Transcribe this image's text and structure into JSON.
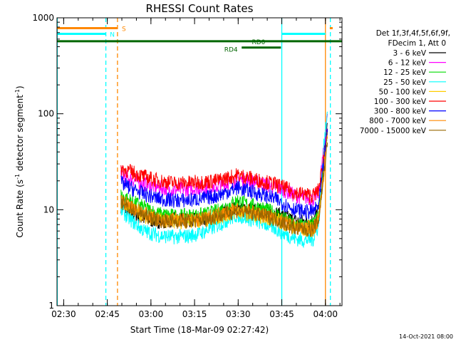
{
  "chart_data": {
    "type": "line",
    "title": "RHESSI Count Rates",
    "xlabel": "Start Time (18-Mar-09 02:27:42)",
    "ylabel_main": "Count Rate (s",
    "ylabel_sup": "-1",
    "ylabel_mid": " detector segment",
    "ylabel_sup2": "-1",
    "ylabel_end": ")",
    "x_unit": "minutes after 02:27:42",
    "xlim": [
      0,
      98
    ],
    "ylim": [
      1,
      1000
    ],
    "y_scale": "log",
    "x_ticks": [
      {
        "label": "02:30",
        "value": 2.3
      },
      {
        "label": "02:45",
        "value": 17.3
      },
      {
        "label": "03:00",
        "value": 32.3
      },
      {
        "label": "03:15",
        "value": 47.3
      },
      {
        "label": "03:30",
        "value": 62.3
      },
      {
        "label": "03:45",
        "value": 77.3
      },
      {
        "label": "04:00",
        "value": 92.3
      }
    ],
    "y_ticks": [
      {
        "label": "1",
        "value": 1
      },
      {
        "label": "10",
        "value": 10
      },
      {
        "label": "100",
        "value": 100
      },
      {
        "label": "1000",
        "value": 1000
      }
    ],
    "legend": {
      "header1": "Det 1f,3f,4f,5f,6f,9f,",
      "header2": "FDecim 1, Att 0",
      "placement": "right"
    },
    "series": [
      {
        "name": "3 - 6 keV",
        "color": "#000000",
        "points": [
          [
            22,
            11
          ],
          [
            25,
            9.5
          ],
          [
            30,
            8
          ],
          [
            35,
            7.6
          ],
          [
            40,
            7.8
          ],
          [
            45,
            7.8
          ],
          [
            50,
            8
          ],
          [
            55,
            8.8
          ],
          [
            60,
            10
          ],
          [
            62,
            10.8
          ],
          [
            65,
            10.2
          ],
          [
            70,
            9.6
          ],
          [
            75,
            9.2
          ],
          [
            78,
            8.5
          ],
          [
            82,
            7.6
          ],
          [
            85,
            7.5
          ],
          [
            88,
            7.6
          ],
          [
            90,
            10
          ],
          [
            92,
            40
          ],
          [
            93,
            80
          ]
        ]
      },
      {
        "name": "6 - 12 keV",
        "color": "#ff00ff",
        "points": [
          [
            22,
            24
          ],
          [
            25,
            21
          ],
          [
            30,
            18.5
          ],
          [
            35,
            17
          ],
          [
            40,
            16
          ],
          [
            45,
            16.5
          ],
          [
            50,
            17
          ],
          [
            55,
            17.5
          ],
          [
            60,
            19.5
          ],
          [
            62,
            21
          ],
          [
            65,
            20
          ],
          [
            70,
            19
          ],
          [
            75,
            17
          ],
          [
            78,
            16
          ],
          [
            82,
            14
          ],
          [
            85,
            13.5
          ],
          [
            88,
            13
          ],
          [
            90,
            15
          ],
          [
            92,
            50
          ],
          [
            93,
            100
          ]
        ]
      },
      {
        "name": "12 - 25 keV",
        "color": "#00dd00",
        "points": [
          [
            22,
            14
          ],
          [
            25,
            12.5
          ],
          [
            30,
            10.5
          ],
          [
            35,
            9
          ],
          [
            40,
            8.6
          ],
          [
            45,
            8.6
          ],
          [
            50,
            8.8
          ],
          [
            55,
            9.6
          ],
          [
            60,
            11.5
          ],
          [
            62,
            12.5
          ],
          [
            65,
            11.5
          ],
          [
            70,
            10.5
          ],
          [
            75,
            9.2
          ],
          [
            78,
            8
          ],
          [
            82,
            7
          ],
          [
            85,
            6.8
          ],
          [
            88,
            6.8
          ],
          [
            90,
            9
          ],
          [
            92,
            35
          ],
          [
            93,
            70
          ]
        ]
      },
      {
        "name": "25 - 50 keV",
        "color": "#00ffff",
        "points": [
          [
            22,
            10
          ],
          [
            25,
            8
          ],
          [
            30,
            6
          ],
          [
            35,
            5.4
          ],
          [
            40,
            5.2
          ],
          [
            45,
            5.3
          ],
          [
            50,
            5.8
          ],
          [
            55,
            6.8
          ],
          [
            60,
            8.2
          ],
          [
            62,
            8.8
          ],
          [
            65,
            8.2
          ],
          [
            70,
            7.4
          ],
          [
            75,
            6.4
          ],
          [
            78,
            5.6
          ],
          [
            82,
            5
          ],
          [
            85,
            4.8
          ],
          [
            88,
            4.9
          ],
          [
            90,
            7
          ],
          [
            92,
            60
          ],
          [
            93,
            105
          ]
        ]
      },
      {
        "name": "50 - 100 keV",
        "color": "#ffcc00",
        "points": [
          [
            22,
            12
          ],
          [
            25,
            10.5
          ],
          [
            30,
            8.5
          ],
          [
            35,
            7.8
          ],
          [
            40,
            7.6
          ],
          [
            45,
            7.6
          ],
          [
            50,
            7.8
          ],
          [
            55,
            8.3
          ],
          [
            60,
            9.2
          ],
          [
            62,
            9.6
          ],
          [
            65,
            9.2
          ],
          [
            70,
            8.6
          ],
          [
            75,
            8
          ],
          [
            78,
            7.2
          ],
          [
            82,
            6.4
          ],
          [
            85,
            6.2
          ],
          [
            88,
            6.2
          ],
          [
            90,
            8
          ],
          [
            92,
            30
          ],
          [
            93,
            60
          ]
        ]
      },
      {
        "name": "100 - 300 keV",
        "color": "#ff0000",
        "points": [
          [
            22,
            27
          ],
          [
            25,
            25
          ],
          [
            30,
            22
          ],
          [
            35,
            20
          ],
          [
            40,
            19
          ],
          [
            45,
            19
          ],
          [
            50,
            19.5
          ],
          [
            55,
            20
          ],
          [
            60,
            22
          ],
          [
            62,
            23
          ],
          [
            65,
            22
          ],
          [
            70,
            20
          ],
          [
            75,
            18.5
          ],
          [
            78,
            17
          ],
          [
            82,
            15
          ],
          [
            85,
            14.5
          ],
          [
            88,
            14
          ],
          [
            90,
            16
          ],
          [
            92,
            40
          ],
          [
            93,
            70
          ]
        ]
      },
      {
        "name": "300 - 800 keV",
        "color": "#0000ff",
        "points": [
          [
            22,
            19
          ],
          [
            25,
            17
          ],
          [
            30,
            14.5
          ],
          [
            35,
            13
          ],
          [
            40,
            12.5
          ],
          [
            45,
            12.5
          ],
          [
            50,
            13
          ],
          [
            55,
            14
          ],
          [
            60,
            16
          ],
          [
            62,
            17
          ],
          [
            65,
            16
          ],
          [
            70,
            14.5
          ],
          [
            75,
            13
          ],
          [
            78,
            11.5
          ],
          [
            82,
            10
          ],
          [
            85,
            9.5
          ],
          [
            88,
            9.5
          ],
          [
            90,
            11
          ],
          [
            92,
            35
          ],
          [
            93,
            65
          ]
        ]
      },
      {
        "name": "800 - 7000 keV",
        "color": "#ff8800",
        "points": [
          [
            22,
            12.5
          ],
          [
            25,
            11
          ],
          [
            30,
            9
          ],
          [
            35,
            8
          ],
          [
            40,
            7.8
          ],
          [
            45,
            7.8
          ],
          [
            50,
            8
          ],
          [
            55,
            8.7
          ],
          [
            60,
            9.6
          ],
          [
            62,
            10
          ],
          [
            65,
            9.6
          ],
          [
            70,
            9
          ],
          [
            75,
            8.2
          ],
          [
            78,
            7.4
          ],
          [
            82,
            6.6
          ],
          [
            85,
            6.4
          ],
          [
            88,
            6.4
          ],
          [
            90,
            8
          ],
          [
            92,
            30
          ],
          [
            93,
            55
          ]
        ]
      },
      {
        "name": "7000 - 15000 keV",
        "color": "#996600",
        "points": [
          [
            22,
            12
          ],
          [
            25,
            10.5
          ],
          [
            30,
            8.7
          ],
          [
            35,
            7.8
          ],
          [
            40,
            7.6
          ],
          [
            45,
            7.6
          ],
          [
            50,
            7.8
          ],
          [
            55,
            8.5
          ],
          [
            60,
            9.4
          ],
          [
            62,
            9.8
          ],
          [
            65,
            9.4
          ],
          [
            70,
            8.8
          ],
          [
            75,
            8
          ],
          [
            78,
            7.2
          ],
          [
            82,
            6.4
          ],
          [
            85,
            6.2
          ],
          [
            88,
            6.2
          ],
          [
            90,
            7.8
          ],
          [
            92,
            28
          ],
          [
            93,
            50
          ]
        ]
      }
    ],
    "markers": [
      {
        "label": "S",
        "color": "#ff8800",
        "y": 780,
        "x0": 0,
        "x1": 20.8,
        "label_x": 22.3
      },
      {
        "label": "N",
        "color": "#00ffff",
        "y": 680,
        "x0": 0,
        "x1": 16.8,
        "label_x": 18.2
      },
      {
        "label": "RD0",
        "color": "#006600",
        "y": 570,
        "x0": 0,
        "x1": 77.3,
        "label_x": 67
      },
      {
        "label": "RD4",
        "color": "#006600",
        "y": 490,
        "x0": 63.5,
        "x1": 77,
        "label_x": 57.5
      }
    ],
    "vlines": [
      {
        "x": 0.1,
        "color": "#00ffff",
        "style": "solid"
      },
      {
        "x": 16.8,
        "color": "#00ffff",
        "style": "dashed"
      },
      {
        "x": 20.8,
        "color": "#ff8800",
        "style": "dashed"
      },
      {
        "x": 77.3,
        "color": "#00ffff",
        "style": "solid"
      },
      {
        "x": 92.3,
        "color": "#ff8800",
        "style": "solid"
      },
      {
        "x": 94.0,
        "color": "#00ffff",
        "style": "dashed"
      }
    ],
    "right_segments": [
      {
        "color": "#00ffff",
        "y": 680,
        "x0": 77.3,
        "x1": 92.3
      },
      {
        "color": "#006600",
        "y": 570,
        "x0": 77.3,
        "x1": 98
      },
      {
        "color": "#ff8800",
        "y": 780,
        "x0": 93.8,
        "x1": 94.8
      }
    ],
    "timestamp": "14-Oct-2021 08:00"
  }
}
